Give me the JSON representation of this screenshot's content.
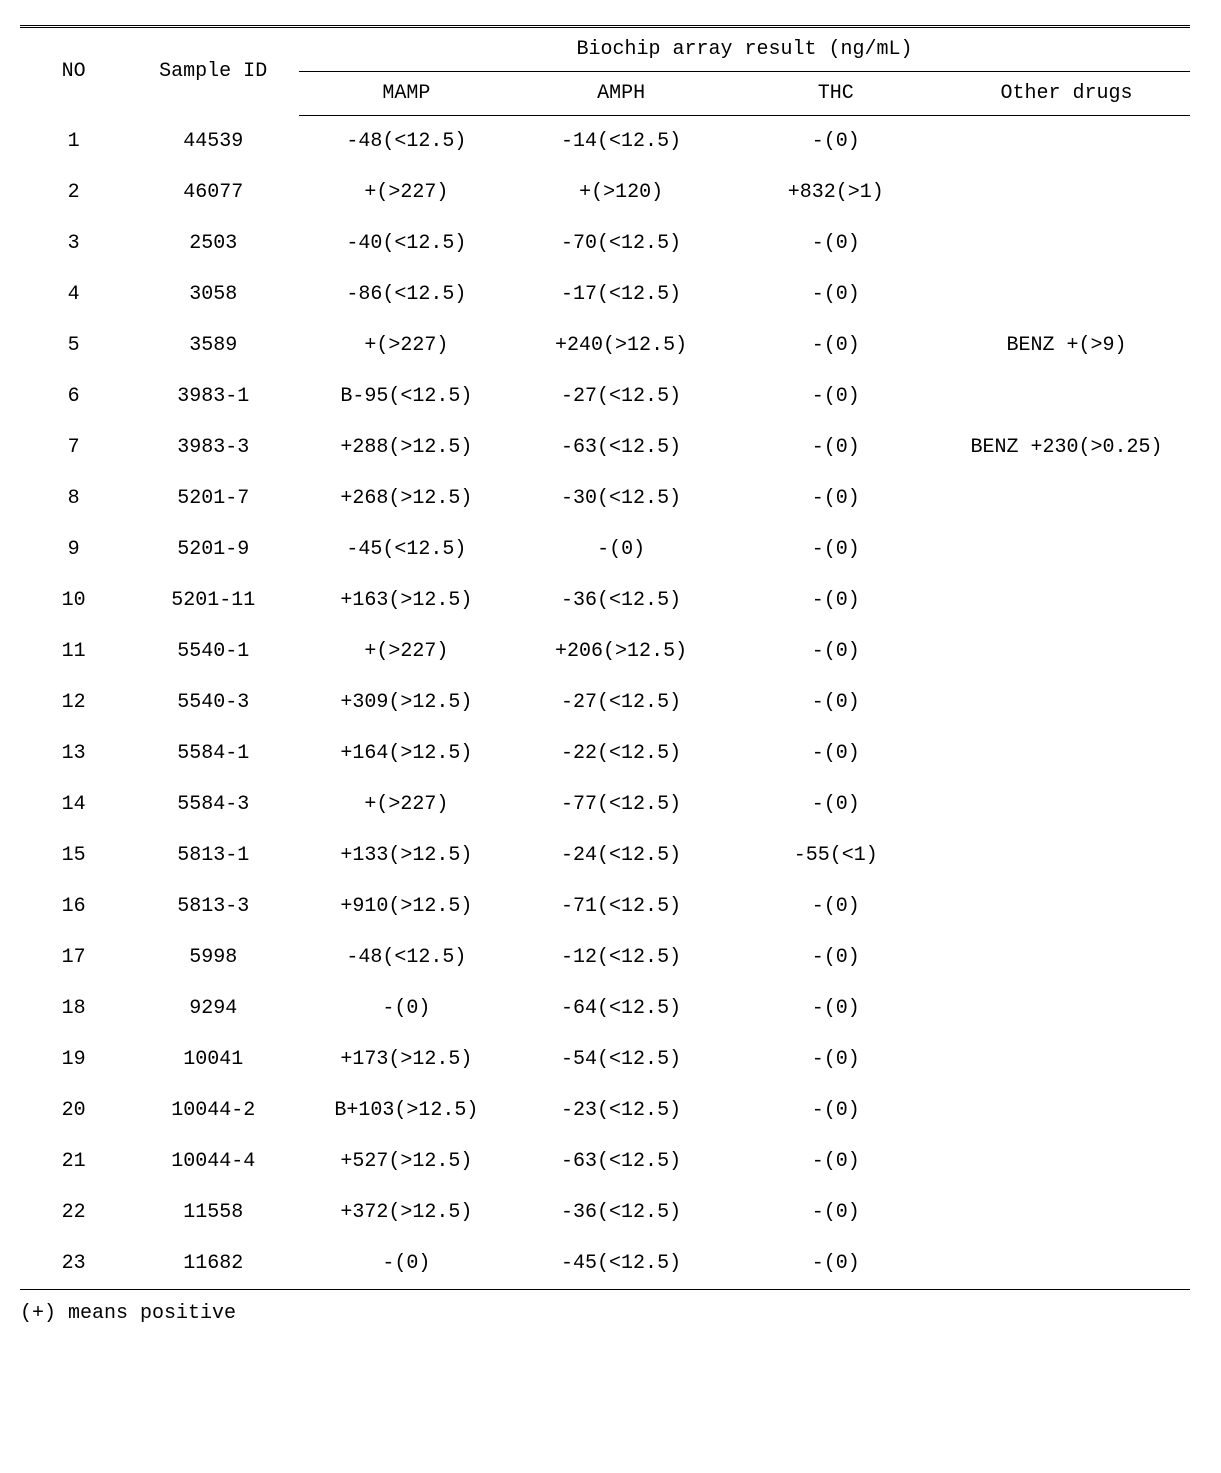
{
  "table": {
    "headers": {
      "no": "NO",
      "sample_id": "Sample ID",
      "group": "Biochip array result (ng/mL)",
      "mamp": "MAMP",
      "amph": "AMPH",
      "thc": "THC",
      "other": "Other drugs"
    },
    "rows": [
      {
        "no": "1",
        "sample_id": "44539",
        "mamp": "-48(<12.5)",
        "amph": "-14(<12.5)",
        "thc": "-(0)",
        "other": ""
      },
      {
        "no": "2",
        "sample_id": "46077",
        "mamp": "+(>227)",
        "amph": "+(>120)",
        "thc": "+832(>1)",
        "other": ""
      },
      {
        "no": "3",
        "sample_id": "2503",
        "mamp": "-40(<12.5)",
        "amph": "-70(<12.5)",
        "thc": "-(0)",
        "other": ""
      },
      {
        "no": "4",
        "sample_id": "3058",
        "mamp": "-86(<12.5)",
        "amph": "-17(<12.5)",
        "thc": "-(0)",
        "other": ""
      },
      {
        "no": "5",
        "sample_id": "3589",
        "mamp": "+(>227)",
        "amph": "+240(>12.5)",
        "thc": "-(0)",
        "other": "BENZ +(>9)"
      },
      {
        "no": "6",
        "sample_id": "3983-1",
        "mamp": "B-95(<12.5)",
        "amph": "-27(<12.5)",
        "thc": "-(0)",
        "other": ""
      },
      {
        "no": "7",
        "sample_id": "3983-3",
        "mamp": "+288(>12.5)",
        "amph": "-63(<12.5)",
        "thc": "-(0)",
        "other": "BENZ +230(>0.25)"
      },
      {
        "no": "8",
        "sample_id": "5201-7",
        "mamp": "+268(>12.5)",
        "amph": "-30(<12.5)",
        "thc": "-(0)",
        "other": ""
      },
      {
        "no": "9",
        "sample_id": "5201-9",
        "mamp": "-45(<12.5)",
        "amph": "-(0)",
        "thc": "-(0)",
        "other": ""
      },
      {
        "no": "10",
        "sample_id": "5201-11",
        "mamp": "+163(>12.5)",
        "amph": "-36(<12.5)",
        "thc": "-(0)",
        "other": ""
      },
      {
        "no": "11",
        "sample_id": "5540-1",
        "mamp": "+(>227)",
        "amph": "+206(>12.5)",
        "thc": "-(0)",
        "other": ""
      },
      {
        "no": "12",
        "sample_id": "5540-3",
        "mamp": "+309(>12.5)",
        "amph": "-27(<12.5)",
        "thc": "-(0)",
        "other": ""
      },
      {
        "no": "13",
        "sample_id": "5584-1",
        "mamp": "+164(>12.5)",
        "amph": "-22(<12.5)",
        "thc": "-(0)",
        "other": ""
      },
      {
        "no": "14",
        "sample_id": "5584-3",
        "mamp": "+(>227)",
        "amph": "-77(<12.5)",
        "thc": "-(0)",
        "other": ""
      },
      {
        "no": "15",
        "sample_id": "5813-1",
        "mamp": "+133(>12.5)",
        "amph": "-24(<12.5)",
        "thc": "-55(<1)",
        "other": ""
      },
      {
        "no": "16",
        "sample_id": "5813-3",
        "mamp": "+910(>12.5)",
        "amph": "-71(<12.5)",
        "thc": "-(0)",
        "other": ""
      },
      {
        "no": "17",
        "sample_id": "5998",
        "mamp": "-48(<12.5)",
        "amph": "-12(<12.5)",
        "thc": "-(0)",
        "other": ""
      },
      {
        "no": "18",
        "sample_id": "9294",
        "mamp": "-(0)",
        "amph": "-64(<12.5)",
        "thc": "-(0)",
        "other": ""
      },
      {
        "no": "19",
        "sample_id": "10041",
        "mamp": "+173(>12.5)",
        "amph": "-54(<12.5)",
        "thc": "-(0)",
        "other": ""
      },
      {
        "no": "20",
        "sample_id": "10044-2",
        "mamp": "B+103(>12.5)",
        "amph": "-23(<12.5)",
        "thc": "-(0)",
        "other": ""
      },
      {
        "no": "21",
        "sample_id": "10044-4",
        "mamp": "+527(>12.5)",
        "amph": "-63(<12.5)",
        "thc": "-(0)",
        "other": ""
      },
      {
        "no": "22",
        "sample_id": "11558",
        "mamp": "+372(>12.5)",
        "amph": "-36(<12.5)",
        "thc": "-(0)",
        "other": ""
      },
      {
        "no": "23",
        "sample_id": "11682",
        "mamp": "-(0)",
        "amph": "-45(<12.5)",
        "thc": "-(0)",
        "other": ""
      }
    ]
  },
  "footnote": "(+) means positive"
}
